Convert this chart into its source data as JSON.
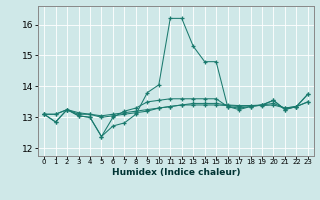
{
  "title": "",
  "xlabel": "Humidex (Indice chaleur)",
  "ylabel": "",
  "bg_color": "#cfe8e8",
  "grid_color": "#ffffff",
  "line_color": "#1a7a6e",
  "border_color": "#888888",
  "xlim": [
    -0.5,
    23.5
  ],
  "ylim": [
    11.75,
    16.6
  ],
  "yticks": [
    12,
    13,
    14,
    15,
    16
  ],
  "xtick_labels": [
    "0",
    "1",
    "2",
    "3",
    "4",
    "5",
    "6",
    "7",
    "8",
    "9",
    "10",
    "11",
    "12",
    "13",
    "14",
    "15",
    "16",
    "17",
    "18",
    "19",
    "20",
    "21",
    "22",
    "23"
  ],
  "series": [
    [
      13.1,
      12.85,
      13.25,
      13.05,
      13.0,
      12.38,
      12.72,
      12.82,
      13.1,
      13.8,
      14.05,
      16.2,
      16.2,
      15.3,
      14.8,
      14.8,
      13.35,
      13.25,
      13.35,
      13.4,
      13.55,
      13.25,
      13.35,
      13.75
    ],
    [
      13.1,
      12.85,
      13.25,
      13.05,
      13.0,
      12.38,
      13.0,
      13.2,
      13.3,
      13.5,
      13.55,
      13.6,
      13.6,
      13.6,
      13.6,
      13.6,
      13.35,
      13.3,
      13.35,
      13.4,
      13.55,
      13.25,
      13.35,
      13.75
    ],
    [
      13.1,
      13.1,
      13.25,
      13.1,
      13.1,
      13.0,
      13.05,
      13.1,
      13.15,
      13.2,
      13.3,
      13.35,
      13.4,
      13.45,
      13.45,
      13.45,
      13.4,
      13.38,
      13.38,
      13.38,
      13.4,
      13.3,
      13.35,
      13.5
    ],
    [
      13.1,
      13.1,
      13.25,
      13.15,
      13.1,
      13.05,
      13.1,
      13.15,
      13.2,
      13.25,
      13.3,
      13.35,
      13.4,
      13.4,
      13.4,
      13.4,
      13.38,
      13.35,
      13.38,
      13.4,
      13.45,
      13.3,
      13.35,
      13.5
    ]
  ]
}
